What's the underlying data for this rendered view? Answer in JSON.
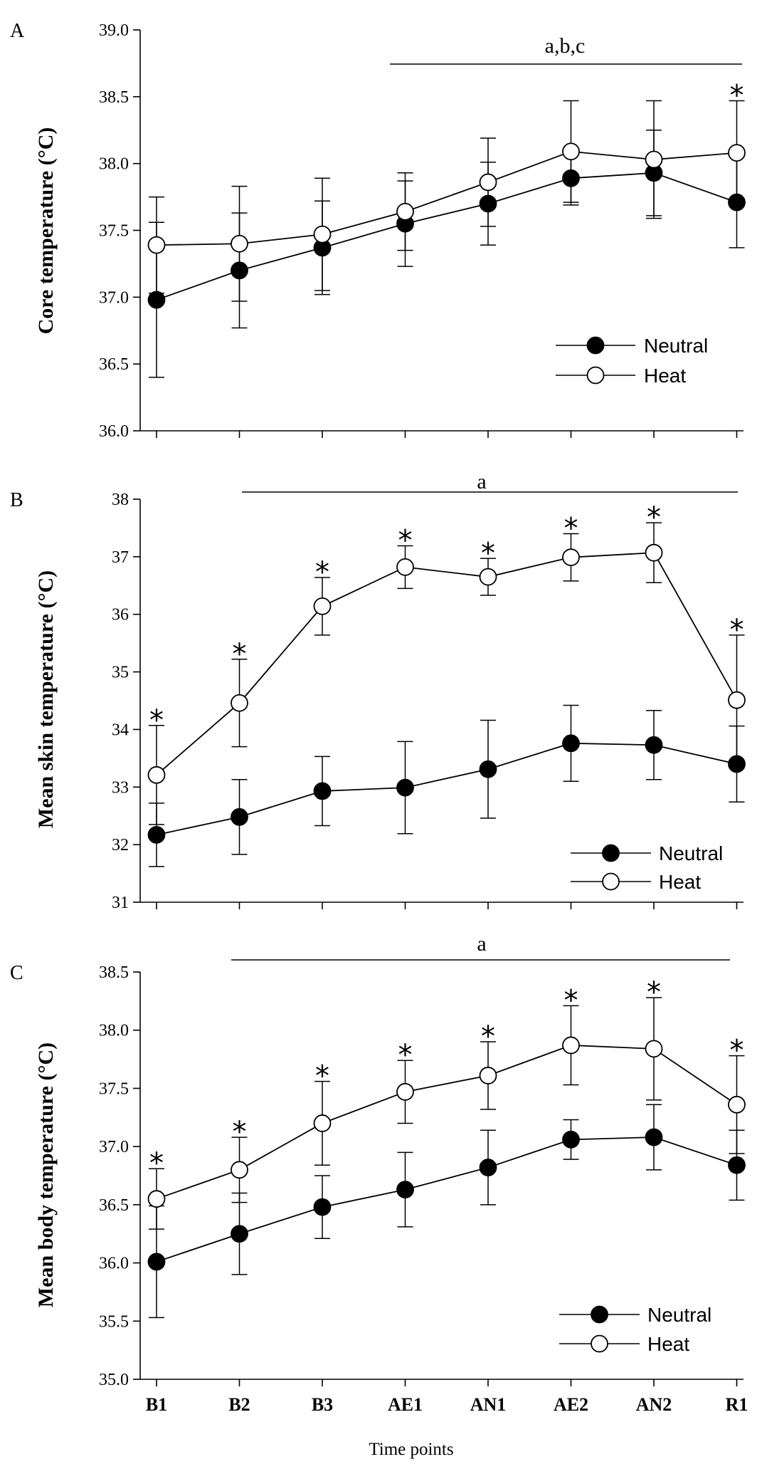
{
  "categories": [
    "B1",
    "B2",
    "B3",
    "AE1",
    "AN1",
    "AE2",
    "AN2",
    "R1"
  ],
  "xlabel": "Time points",
  "colors": {
    "neutral_fill": "#000000",
    "heat_fill": "#ffffff",
    "stroke": "#000000"
  },
  "chart_data": [
    {
      "type": "line",
      "panel": "A",
      "ylabel": "Core temperature (°C)",
      "ylim": [
        36.0,
        39.0
      ],
      "yticks": [
        "36.0",
        "36.5",
        "37.0",
        "37.5",
        "38.0",
        "38.5",
        "39.0"
      ],
      "categories": [
        "B1",
        "B2",
        "B3",
        "AE1",
        "AN1",
        "AE2",
        "AN2",
        "R1"
      ],
      "legend": {
        "position": "bottom-right"
      },
      "significance": {
        "label": "a,b,c",
        "from": "AE1",
        "to": "R1"
      },
      "stars": [
        "R1"
      ],
      "series": [
        {
          "name": "Neutral",
          "marker": "filled",
          "values": [
            36.98,
            37.2,
            37.37,
            37.55,
            37.7,
            37.89,
            37.93,
            37.71
          ],
          "errors": [
            0.58,
            0.43,
            0.35,
            0.32,
            0.31,
            0.2,
            0.32,
            0.34
          ]
        },
        {
          "name": "Heat",
          "marker": "open",
          "values": [
            37.39,
            37.4,
            37.47,
            37.64,
            37.86,
            38.09,
            38.03,
            38.08
          ],
          "errors": [
            0.36,
            0.43,
            0.42,
            0.29,
            0.33,
            0.38,
            0.44,
            0.39
          ]
        }
      ]
    },
    {
      "type": "line",
      "panel": "B",
      "ylabel": "Mean skin temperature (°C)",
      "ylim": [
        31,
        38
      ],
      "yticks": [
        "31",
        "32",
        "33",
        "34",
        "35",
        "36",
        "37",
        "38"
      ],
      "categories": [
        "B1",
        "B2",
        "B3",
        "AE1",
        "AN1",
        "AE2",
        "AN2",
        "R1"
      ],
      "legend": {
        "position": "bottom-right"
      },
      "significance": {
        "label": "a",
        "from": "B2",
        "to": "R1"
      },
      "stars": [
        "B1",
        "B2",
        "B3",
        "AE1",
        "AN1",
        "AE2",
        "AN2",
        "R1"
      ],
      "series": [
        {
          "name": "Neutral",
          "marker": "filled",
          "values": [
            32.17,
            32.48,
            32.93,
            32.99,
            33.31,
            33.76,
            33.73,
            33.4
          ],
          "errors": [
            0.55,
            0.65,
            0.6,
            0.8,
            0.85,
            0.66,
            0.6,
            0.66
          ]
        },
        {
          "name": "Heat",
          "marker": "open",
          "values": [
            33.21,
            34.46,
            36.14,
            36.82,
            36.65,
            36.99,
            37.07,
            34.51
          ],
          "errors": [
            0.86,
            0.76,
            0.5,
            0.37,
            0.32,
            0.41,
            0.52,
            1.13
          ]
        }
      ]
    },
    {
      "type": "line",
      "panel": "C",
      "ylabel": "Mean body temperature (°C)",
      "ylim": [
        35.0,
        38.5
      ],
      "yticks": [
        "35.0",
        "35.5",
        "36.0",
        "36.5",
        "37.0",
        "37.5",
        "38.0",
        "38.5"
      ],
      "categories": [
        "B1",
        "B2",
        "B3",
        "AE1",
        "AN1",
        "AE2",
        "AN2",
        "R1"
      ],
      "legend": {
        "position": "bottom-right"
      },
      "significance": {
        "label": "a",
        "from": "B2",
        "to": "R1"
      },
      "stars": [
        "B1",
        "B2",
        "B3",
        "AE1",
        "AN1",
        "AE2",
        "AN2",
        "R1"
      ],
      "series": [
        {
          "name": "Neutral",
          "marker": "filled",
          "values": [
            36.01,
            36.25,
            36.48,
            36.63,
            36.82,
            37.06,
            37.08,
            36.84
          ],
          "errors": [
            0.48,
            0.35,
            0.27,
            0.32,
            0.32,
            0.17,
            0.28,
            0.3
          ]
        },
        {
          "name": "Heat",
          "marker": "open",
          "values": [
            36.55,
            36.8,
            37.2,
            37.47,
            37.61,
            37.87,
            37.84,
            37.36
          ],
          "errors": [
            0.26,
            0.28,
            0.36,
            0.27,
            0.29,
            0.34,
            0.44,
            0.42
          ]
        }
      ]
    }
  ]
}
